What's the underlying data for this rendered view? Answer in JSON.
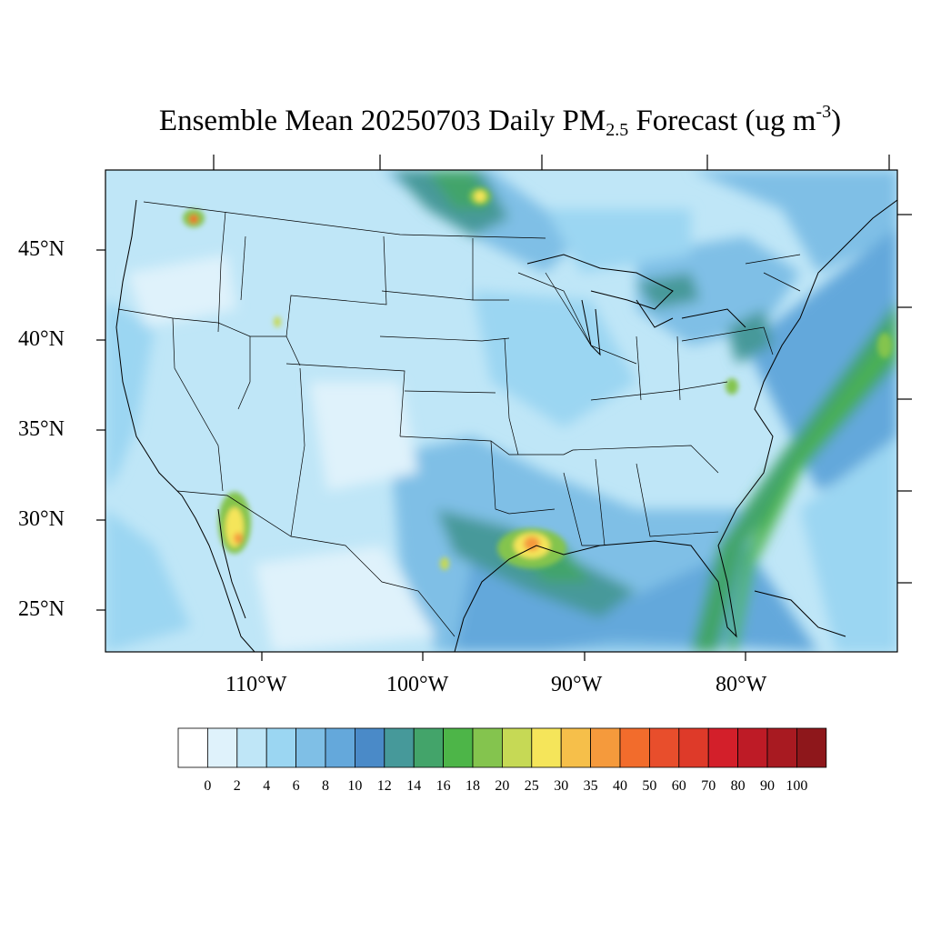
{
  "title": {
    "main": "Ensemble Mean 20250703 Daily PM",
    "subscript": "2.5",
    "after": " Forecast (ug m",
    "superscript": "-3",
    "close": ")"
  },
  "map": {
    "region": "Contiguous United States",
    "lat_labels": [
      "45°N",
      "40°N",
      "35°N",
      "30°N",
      "25°N"
    ],
    "lon_labels": [
      "110°W",
      "100°W",
      "90°W",
      "80°W"
    ]
  },
  "colorbar": {
    "labels": [
      "0",
      "2",
      "4",
      "6",
      "8",
      "10",
      "12",
      "14",
      "16",
      "18",
      "20",
      "25",
      "30",
      "35",
      "40",
      "50",
      "60",
      "70",
      "80",
      "90",
      "100"
    ],
    "colors": [
      "#ffffff",
      "#dff2fb",
      "#bfe6f7",
      "#9bd6f2",
      "#7fbfe6",
      "#64a8db",
      "#4a8ac8",
      "#46999a",
      "#43a46a",
      "#4db548",
      "#84c44e",
      "#c6d955",
      "#f5e55a",
      "#f6bf4a",
      "#f59a3c",
      "#f26c2c",
      "#e84e2c",
      "#de3a29",
      "#d31f2a",
      "#be1b26",
      "#a81a21",
      "#8e171b"
    ]
  }
}
